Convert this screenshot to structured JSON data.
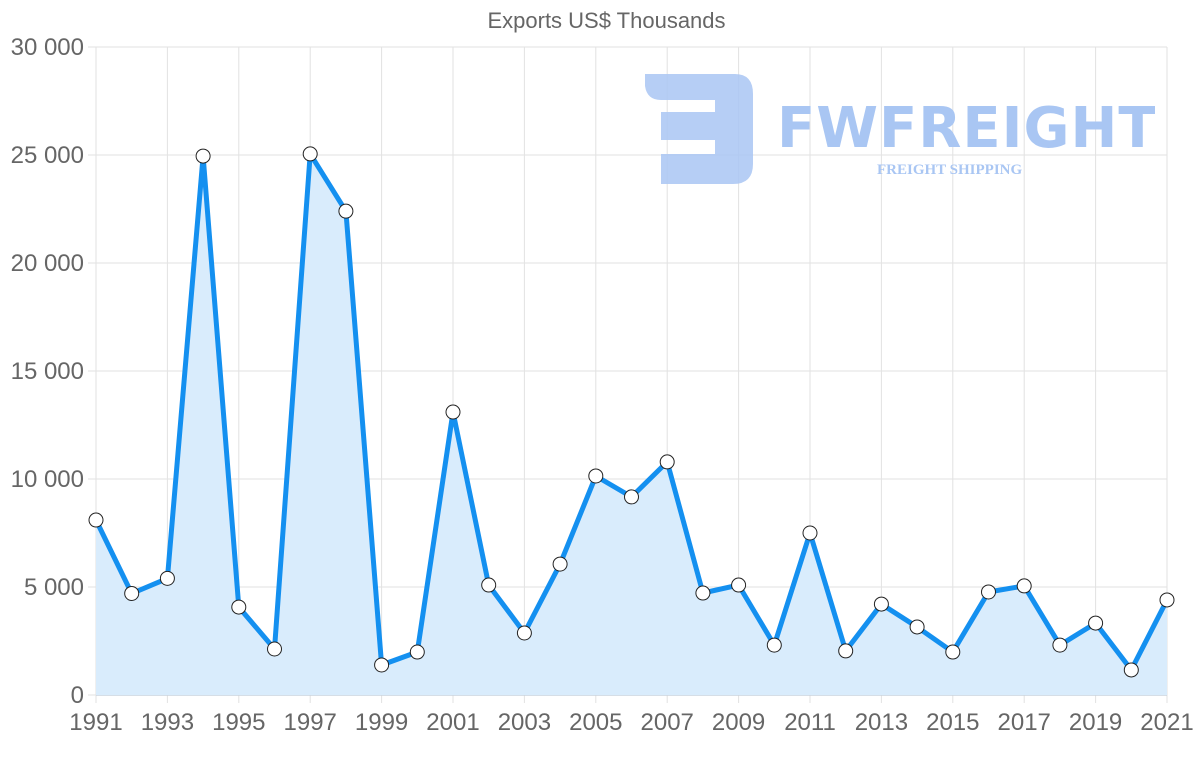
{
  "chart_data": {
    "type": "line",
    "title": "Exports US$ Thousands",
    "xlabel": "",
    "ylabel": "",
    "x": [
      1991,
      1992,
      1993,
      1994,
      1995,
      1996,
      1997,
      1998,
      1999,
      2000,
      2001,
      2002,
      2003,
      2004,
      2005,
      2006,
      2007,
      2008,
      2009,
      2010,
      2011,
      2012,
      2013,
      2014,
      2015,
      2016,
      2017,
      2018,
      2019,
      2020,
      2021
    ],
    "series": [
      {
        "name": "Exports US$ Thousands",
        "values": [
          8100,
          4700,
          5400,
          24950,
          4070,
          2130,
          25050,
          22400,
          1390,
          1990,
          13100,
          5090,
          2870,
          6060,
          10140,
          9170,
          10790,
          4720,
          5090,
          2310,
          7500,
          2040,
          4210,
          3150,
          1990,
          4770,
          5050,
          2310,
          3330,
          1160,
          4400
        ],
        "color": "#1490f0",
        "fill": "#d9ecfc"
      }
    ],
    "ylim": [
      0,
      30000
    ],
    "yticks": [
      0,
      5000,
      10000,
      15000,
      20000,
      25000,
      30000
    ],
    "ytick_labels": [
      "0",
      "5 000",
      "10 000",
      "15 000",
      "20 000",
      "25 000",
      "30 000"
    ],
    "xtick_labels": [
      "1991",
      "1993",
      "1995",
      "1997",
      "1999",
      "2001",
      "2003",
      "2005",
      "2007",
      "2009",
      "2011",
      "2013",
      "2015",
      "2017",
      "2019",
      "2021"
    ],
    "grid": true,
    "legend": "none",
    "fill_area": true
  },
  "watermark": {
    "brand": "FWFREIGHT",
    "tagline": "FREIGHT SHIPPING",
    "color": "#a9c6f3"
  }
}
